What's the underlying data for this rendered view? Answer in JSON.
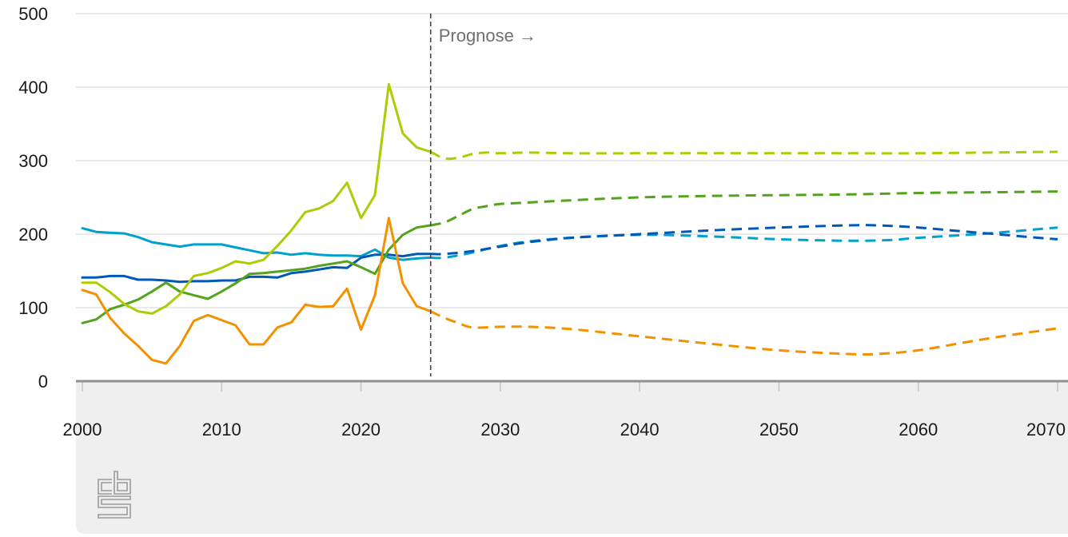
{
  "chart_data": {
    "type": "line",
    "xlim": [
      2000,
      2070
    ],
    "ylim": [
      0,
      500
    ],
    "x_ticks": [
      2000,
      2010,
      2020,
      2030,
      2040,
      2050,
      2060,
      2070
    ],
    "y_ticks": [
      0,
      100,
      200,
      300,
      400,
      500
    ],
    "grid": true,
    "forecast_start": 2025,
    "annotation": "Prognose →",
    "historical_x": [
      2000,
      2001,
      2002,
      2003,
      2004,
      2005,
      2006,
      2007,
      2008,
      2009,
      2010,
      2011,
      2012,
      2013,
      2014,
      2015,
      2016,
      2017,
      2018,
      2019,
      2020,
      2021,
      2022,
      2023,
      2024,
      2025
    ],
    "series": [
      {
        "color": "#00a1cd",
        "historical": [
          208,
          203,
          202,
          201,
          196,
          189,
          186,
          183,
          186,
          186,
          186,
          182,
          178,
          174,
          175,
          172,
          174,
          172,
          171,
          171,
          170,
          179,
          168,
          165,
          167,
          168
        ],
        "forecast": {
          "x": [
            2025,
            2026,
            2028,
            2030,
            2032,
            2035,
            2040,
            2045,
            2050,
            2055,
            2058,
            2060,
            2065,
            2070
          ],
          "y": [
            168,
            168,
            175,
            184,
            190,
            195,
            199,
            197,
            193,
            191,
            192,
            195,
            201,
            209
          ]
        }
      },
      {
        "color": "#0058b8",
        "historical": [
          141,
          141,
          143,
          143,
          138,
          138,
          137,
          135,
          136,
          136,
          137,
          137,
          142,
          142,
          141,
          147,
          149,
          152,
          155,
          154,
          168,
          172,
          172,
          170,
          173,
          173
        ],
        "forecast": {
          "x": [
            2025,
            2026,
            2028,
            2030,
            2032,
            2035,
            2038,
            2040,
            2045,
            2050,
            2055,
            2057,
            2060,
            2063,
            2065,
            2068,
            2070
          ],
          "y": [
            173,
            173,
            177,
            183,
            189,
            195,
            198,
            200,
            205,
            209,
            212,
            212,
            209,
            204,
            201,
            196,
            193
          ]
        }
      },
      {
        "color": "#53a31d",
        "historical": [
          79,
          84,
          98,
          104,
          111,
          122,
          134,
          122,
          117,
          112,
          122,
          133,
          146,
          147,
          149,
          151,
          153,
          157,
          160,
          163,
          155,
          146,
          179,
          199,
          209,
          212
        ],
        "forecast": {
          "x": [
            2025,
            2026,
            2027,
            2028,
            2029,
            2030,
            2032,
            2035,
            2040,
            2045,
            2050,
            2055,
            2060,
            2065,
            2070
          ],
          "y": [
            212,
            216,
            225,
            234,
            238,
            241,
            243,
            246,
            250,
            252,
            253,
            254,
            256,
            257,
            258
          ]
        }
      },
      {
        "color": "#afcb05",
        "historical": [
          134,
          134,
          121,
          105,
          95,
          92,
          102,
          118,
          143,
          147,
          154,
          163,
          160,
          165,
          184,
          205,
          230,
          235,
          245,
          270,
          222,
          253,
          404,
          337,
          318,
          312
        ],
        "forecast": {
          "x": [
            2025,
            2026,
            2027,
            2028,
            2029,
            2030,
            2032,
            2035,
            2040,
            2045,
            2050,
            2055,
            2060,
            2065,
            2070
          ],
          "y": [
            312,
            303,
            304,
            309,
            311,
            310,
            311,
            310,
            310,
            310,
            310,
            310,
            310,
            311,
            312
          ]
        }
      },
      {
        "color": "#f39200",
        "historical": [
          124,
          118,
          86,
          65,
          48,
          29,
          24,
          48,
          82,
          90,
          83,
          76,
          50,
          50,
          73,
          80,
          104,
          101,
          102,
          126,
          70,
          117,
          222,
          133,
          102,
          95
        ],
        "forecast": {
          "x": [
            2025,
            2026,
            2027,
            2028,
            2030,
            2032,
            2035,
            2040,
            2045,
            2050,
            2055,
            2057,
            2060,
            2065,
            2070
          ],
          "y": [
            95,
            86,
            79,
            73,
            74,
            74,
            71,
            61,
            51,
            42,
            37,
            37,
            42,
            58,
            72
          ]
        }
      }
    ]
  },
  "brand": {
    "logo_text": "cbs"
  }
}
